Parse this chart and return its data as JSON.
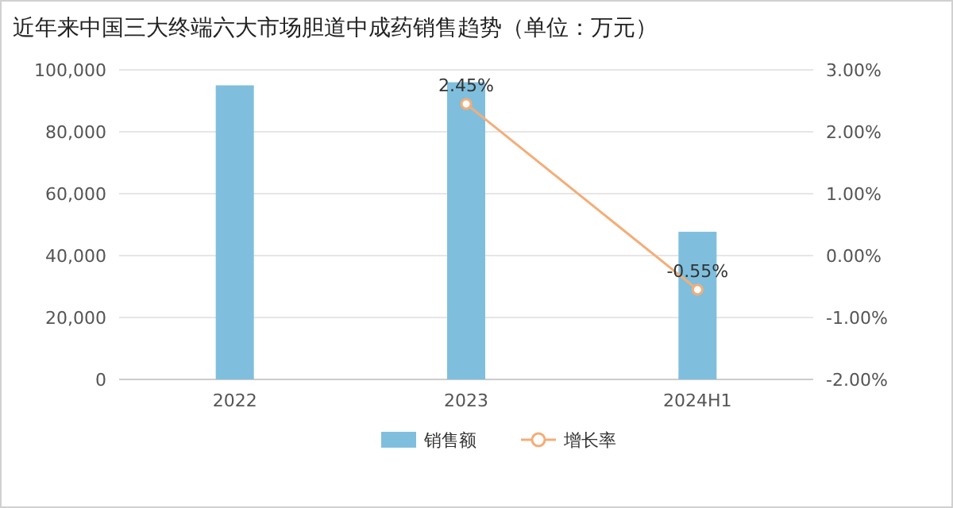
{
  "chart_data": {
    "type": "bar",
    "title": "近年来中国三大终端六大市场胆道中成药销售趋势（单位：万元）",
    "categories": [
      "2022",
      "2023",
      "2024H1"
    ],
    "series": [
      {
        "name": "销售额",
        "color": "#7fbfdd",
        "values": [
          95000,
          96000,
          47700
        ]
      },
      {
        "name": "增长率",
        "type": "line",
        "axis": "y2",
        "color": "#f4ad78",
        "marker": "circle",
        "values": [
          null,
          2.45,
          -0.55
        ],
        "value_labels": [
          null,
          "2.45%",
          "-0.55%"
        ]
      }
    ],
    "ylim": [
      0,
      100000
    ],
    "yticks": [
      {
        "value": 0,
        "label": "0"
      },
      {
        "value": 20000,
        "label": "20,000"
      },
      {
        "value": 40000,
        "label": "40,000"
      },
      {
        "value": 60000,
        "label": "60,000"
      },
      {
        "value": 80000,
        "label": "80,000"
      },
      {
        "value": 100000,
        "label": "100,000"
      }
    ],
    "y2lim": [
      -2,
      3
    ],
    "y2ticks": [
      {
        "value": -2,
        "label": "-2.00%"
      },
      {
        "value": -1,
        "label": "-1.00%"
      },
      {
        "value": 0,
        "label": "0.00%"
      },
      {
        "value": 1,
        "label": "1.00%"
      },
      {
        "value": 2,
        "label": "2.00%"
      },
      {
        "value": 3,
        "label": "3.00%"
      }
    ],
    "grid": "y",
    "legend": "bottom"
  }
}
